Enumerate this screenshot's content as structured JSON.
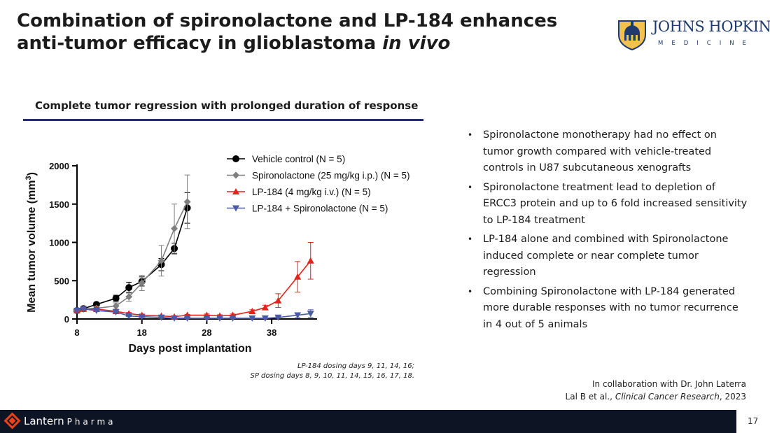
{
  "title": {
    "line1": "Combination of spironolactone and LP-184 enhances",
    "line2_plain": "anti-tumor efficacy in glioblastoma ",
    "line2_italic": "in vivo"
  },
  "logo": {
    "name": "JOHNS HOPKINS",
    "sub": "MEDICINE",
    "icon": "dome-shield-icon"
  },
  "subtitle": "Complete tumor regression with prolonged duration of response",
  "chart_data": {
    "type": "line",
    "xlabel": "Days post implantation",
    "ylabel": "Mean tumor volume (mm",
    "ylabel_sup": "3",
    "ylabel_close": ")",
    "xlim": [
      8,
      45
    ],
    "ylim": [
      0,
      2000
    ],
    "xticks": [
      8,
      18,
      28,
      38
    ],
    "yticks": [
      0,
      500,
      1000,
      1500,
      2000
    ],
    "grid": false,
    "legend": "top-right",
    "series": [
      {
        "name": "Vehicle control (N = 5)",
        "color": "#000000",
        "marker": "circle",
        "x": [
          8,
          9,
          11,
          14,
          16,
          18,
          21,
          23,
          25
        ],
        "y": [
          110,
          135,
          190,
          270,
          410,
          490,
          710,
          920,
          1450
        ],
        "err": [
          20,
          20,
          25,
          40,
          70,
          60,
          80,
          70,
          200
        ]
      },
      {
        "name": "Spironolactone (25 mg/kg i.p.) (N = 5)",
        "color": "#7f7f7f",
        "marker": "diamond",
        "x": [
          8,
          9,
          11,
          14,
          16,
          18,
          21,
          23,
          25
        ],
        "y": [
          110,
          130,
          140,
          170,
          290,
          470,
          760,
          1180,
          1530
        ],
        "err": [
          15,
          20,
          25,
          40,
          60,
          100,
          200,
          320,
          350
        ]
      },
      {
        "name": "LP-184 (4 mg/kg i.v.) (N = 5)",
        "color": "#e2231a",
        "marker": "triangle-up",
        "x": [
          8,
          9,
          11,
          14,
          16,
          18,
          21,
          23,
          25,
          28,
          30,
          32,
          35,
          37,
          39,
          42,
          44
        ],
        "y": [
          110,
          130,
          130,
          100,
          70,
          50,
          40,
          30,
          50,
          50,
          40,
          50,
          100,
          150,
          240,
          550,
          760
        ],
        "err": [
          15,
          15,
          20,
          20,
          15,
          15,
          10,
          10,
          10,
          15,
          15,
          15,
          20,
          30,
          90,
          200,
          240
        ]
      },
      {
        "name": "LP-184 + Spironolactone (N = 5)",
        "color": "#4a5aa8",
        "marker": "triangle-down",
        "x": [
          8,
          9,
          11,
          14,
          16,
          18,
          21,
          23,
          25,
          28,
          30,
          32,
          35,
          37,
          39,
          42,
          44
        ],
        "y": [
          110,
          130,
          110,
          90,
          40,
          30,
          20,
          10,
          10,
          10,
          10,
          10,
          10,
          10,
          20,
          50,
          70
        ],
        "err": [
          15,
          15,
          15,
          15,
          10,
          10,
          5,
          5,
          5,
          5,
          5,
          5,
          5,
          5,
          10,
          30,
          50
        ]
      }
    ]
  },
  "dosing": {
    "line1": "LP-184 dosing days 9, 11, 14, 16;",
    "line2": "SP dosing days  8, 9, 10, 11, 14, 15, 16, 17, 18."
  },
  "bullets": [
    "Spironolactone monotherapy had no effect on tumor growth compared with vehicle-treated controls in U87 subcutaneous xenografts",
    "Spironolactone treatment lead to depletion of ERCC3 protein and up to 6 fold increased sensitivity to LP-184 treatment",
    "LP-184 alone and combined with Spironolactone  induced complete or near complete tumor regression",
    "Combining Spironolactone with LP-184 generated more durable responses with no tumor recurrence in 4 out of 5 animals"
  ],
  "bullet_symbol": "•",
  "collab": {
    "line1": "In collaboration with Dr. John Laterra",
    "line2_pre": "Lal B et al., ",
    "line2_journal": "Clinical Cancer Research",
    "line2_post": ", 2023"
  },
  "footer": {
    "brand": "Lantern",
    "brand_suffix": "Pharma",
    "accent": "#e8431a"
  },
  "page_number": "17"
}
